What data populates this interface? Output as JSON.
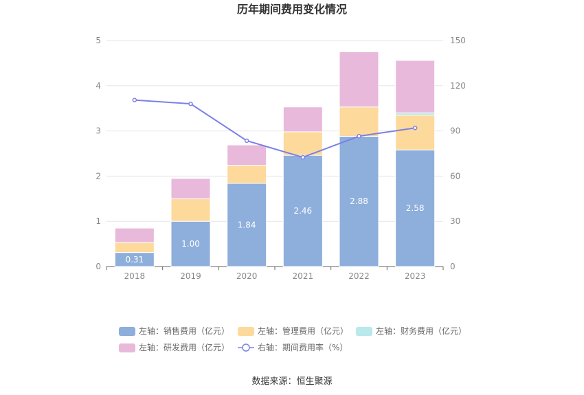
{
  "chart_data": {
    "type": "bar",
    "title": "历年期间费用变化情况",
    "categories": [
      "2018",
      "2019",
      "2020",
      "2021",
      "2022",
      "2023"
    ],
    "stacked": true,
    "left_axis": {
      "range": [
        0,
        5
      ],
      "ticks": [
        "0",
        "1",
        "2",
        "3",
        "4",
        "5"
      ]
    },
    "right_axis": {
      "range": [
        0,
        150
      ],
      "ticks": [
        "0",
        "30",
        "60",
        "90",
        "120",
        "150"
      ]
    },
    "series": [
      {
        "name": "左轴：销售费用（亿元）",
        "type": "bar",
        "axis": "left",
        "color": "#8eaedb",
        "values": [
          0.31,
          1.0,
          1.84,
          2.46,
          2.88,
          2.58
        ],
        "labels": [
          "0.31",
          "1.00",
          "1.84",
          "2.46",
          "2.88",
          "2.58"
        ]
      },
      {
        "name": "左轴：管理费用（亿元）",
        "type": "bar",
        "axis": "left",
        "color": "#fdd99c",
        "values": [
          0.22,
          0.5,
          0.4,
          0.52,
          0.65,
          0.77
        ]
      },
      {
        "name": "左轴：财务费用（亿元）",
        "type": "bar",
        "axis": "left",
        "color": "#b9e9ea",
        "values": [
          0.0,
          0.0,
          0.0,
          0.0,
          0.0,
          0.05
        ]
      },
      {
        "name": "左轴：研发费用（亿元）",
        "type": "bar",
        "axis": "left",
        "color": "#e8b9db",
        "values": [
          0.32,
          0.45,
          0.45,
          0.55,
          1.22,
          1.16
        ]
      },
      {
        "name": "右轴：期间费用率（%）",
        "type": "line",
        "axis": "right",
        "color": "#7b80e6",
        "values": [
          110.5,
          108.0,
          83.5,
          72.5,
          86.5,
          92.0
        ]
      }
    ],
    "source": "数据来源：恒生聚源"
  }
}
